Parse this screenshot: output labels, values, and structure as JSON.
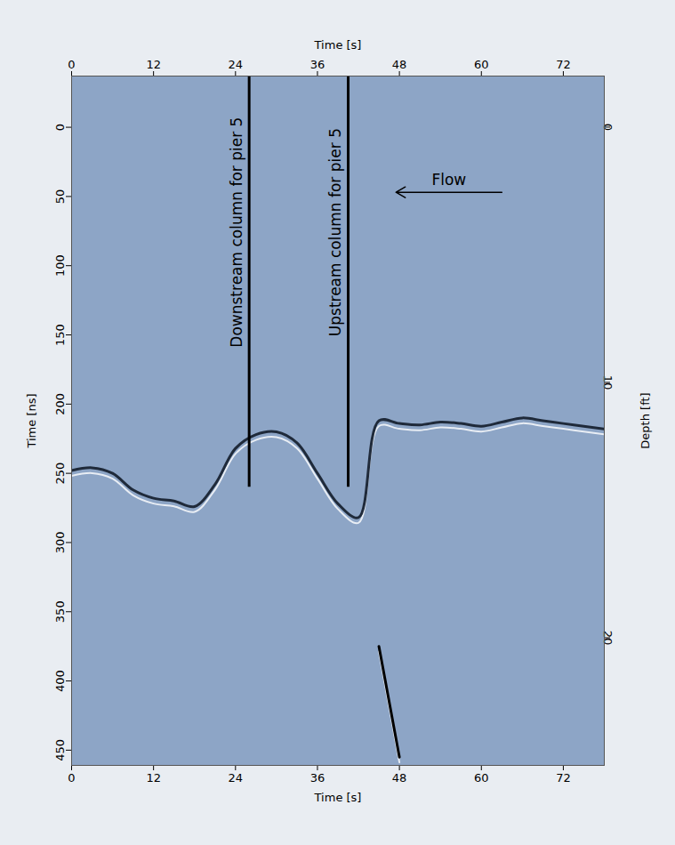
{
  "chart_data": {
    "type": "line",
    "xlabel": "Time [s]",
    "ylabel": "Time [ns]",
    "y2label": "Depth [ft]",
    "x": [
      0,
      3,
      6,
      9,
      12,
      15,
      18,
      21,
      24,
      27,
      30,
      33,
      36,
      39,
      42,
      45,
      48,
      51,
      54,
      57,
      60,
      63,
      66,
      69,
      72,
      75,
      78
    ],
    "series": [
      {
        "color": "#1f2a3a",
        "values": [
          248,
          246,
          250,
          262,
          268,
          270,
          274,
          258,
          232,
          222,
          220,
          228,
          250,
          272,
          282,
          212,
          214,
          215,
          213,
          214,
          216,
          213,
          210,
          212,
          214,
          216,
          218
        ]
      },
      {
        "color": "#000000",
        "values": [
          null,
          null,
          null,
          null,
          null,
          null,
          null,
          null,
          null,
          null,
          null,
          null,
          null,
          null,
          null,
          375,
          455,
          null,
          null,
          null,
          null,
          null,
          null,
          null,
          null,
          null,
          null
        ]
      }
    ],
    "xlim": [
      0,
      78
    ],
    "xticks": [
      0,
      12,
      24,
      36,
      48,
      60,
      72
    ],
    "ylim": [
      -37,
      461
    ],
    "yticks": [
      0,
      50,
      100,
      150,
      200,
      250,
      300,
      350,
      400,
      450
    ],
    "y2lim": [
      -2,
      25
    ],
    "y2ticks": [
      0,
      10,
      20
    ],
    "annotations": [
      {
        "text": "Downstream column for pier 5",
        "x": 26,
        "y_end": 260
      },
      {
        "text": "Upstream column for pier 5",
        "x": 40.5,
        "y_end": 260
      },
      {
        "text": "Flow",
        "x_start": 63,
        "x_end": 47.5,
        "y": 47
      }
    ],
    "grid": false
  }
}
